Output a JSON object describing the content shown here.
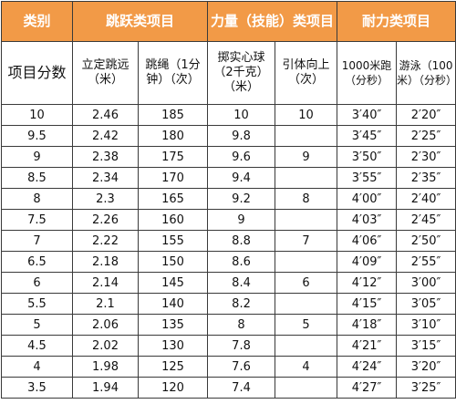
{
  "headers": {
    "category": "类别",
    "jump": "跳跃类项目",
    "strength": "力量（技能）类项目",
    "endurance": "耐力类项目"
  },
  "subheaders": {
    "score": "项目分数",
    "standing_jump": "立定跳远（米）",
    "rope": "跳绳（1分钟）（次）",
    "ball": "掷实心球（2千克）（米）",
    "pullup": "引体向上（次）",
    "run": "1000米跑（分秒）",
    "swim": "游泳（100米）（分秒）"
  },
  "rows": [
    {
      "score": "10",
      "jump": "2.46",
      "rope": "185",
      "ball": "10",
      "pull": "10",
      "run": "3′40″",
      "swim": "2′20″"
    },
    {
      "score": "9.5",
      "jump": "2.42",
      "rope": "180",
      "ball": "9.8",
      "pull": "",
      "run": "3′45″",
      "swim": "2′25″"
    },
    {
      "score": "9",
      "jump": "2.38",
      "rope": "175",
      "ball": "9.6",
      "pull": "9",
      "run": "3′50″",
      "swim": "2′30″"
    },
    {
      "score": "8.5",
      "jump": "2.34",
      "rope": "170",
      "ball": "9.4",
      "pull": "",
      "run": "3′55″",
      "swim": "2′35″"
    },
    {
      "score": "8",
      "jump": "2.3",
      "rope": "165",
      "ball": "9.2",
      "pull": "8",
      "run": "4′00″",
      "swim": "2′40″"
    },
    {
      "score": "7.5",
      "jump": "2.26",
      "rope": "160",
      "ball": "9",
      "pull": "",
      "run": "4′03″",
      "swim": "2′45″"
    },
    {
      "score": "7",
      "jump": "2.22",
      "rope": "155",
      "ball": "8.8",
      "pull": "7",
      "run": "4′06″",
      "swim": "2′50″"
    },
    {
      "score": "6.5",
      "jump": "2.18",
      "rope": "150",
      "ball": "8.6",
      "pull": "",
      "run": "4′09″",
      "swim": "2′55″"
    },
    {
      "score": "6",
      "jump": "2.14",
      "rope": "145",
      "ball": "8.4",
      "pull": "6",
      "run": "4′12″",
      "swim": "3′00″"
    },
    {
      "score": "5.5",
      "jump": "2.1",
      "rope": "140",
      "ball": "8.2",
      "pull": "",
      "run": "4′15″",
      "swim": "3′05″"
    },
    {
      "score": "5",
      "jump": "2.06",
      "rope": "135",
      "ball": "8",
      "pull": "5",
      "run": "4′18″",
      "swim": "3′10″"
    },
    {
      "score": "4.5",
      "jump": "2.02",
      "rope": "130",
      "ball": "7.8",
      "pull": "",
      "run": "4′21″",
      "swim": "3′15″"
    },
    {
      "score": "4",
      "jump": "1.98",
      "rope": "125",
      "ball": "7.6",
      "pull": "4",
      "run": "4′24″",
      "swim": "3′20″"
    },
    {
      "score": "3.5",
      "jump": "1.94",
      "rope": "120",
      "ball": "7.4",
      "pull": "",
      "run": "4′27″",
      "swim": "3′25″"
    }
  ]
}
